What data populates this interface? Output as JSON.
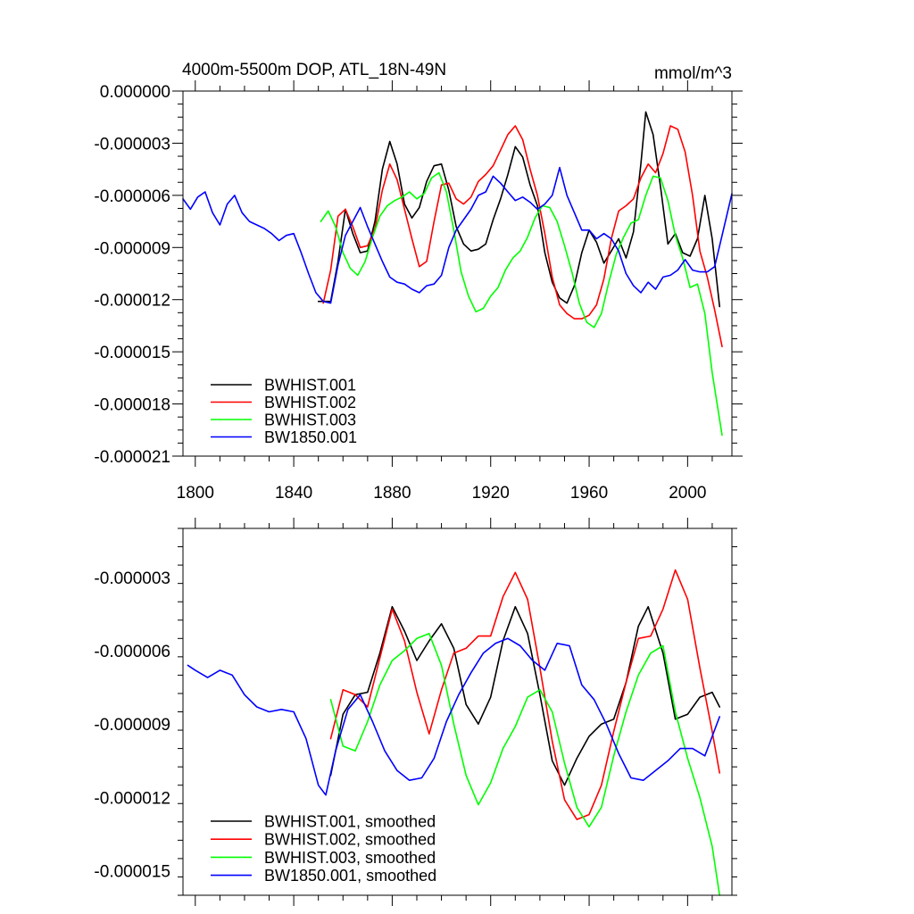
{
  "chart_data": [
    {
      "type": "line",
      "title": "4000m-5500m DOP, ATL_18N-49N",
      "units": "mmol/m^3",
      "xlabel": "",
      "ylabel": "",
      "xlim": [
        1795,
        2018
      ],
      "ylim": [
        -2.1e-05,
        0.0
      ],
      "xticks": [
        1800,
        1840,
        1880,
        1920,
        1960,
        2000
      ],
      "xtick_labels": [
        "1800",
        "1840",
        "1880",
        "1920",
        "1960",
        "2000"
      ],
      "yticks": [
        0.0,
        -3e-06,
        -6e-06,
        -9e-06,
        -1.2e-05,
        -1.5e-05,
        -1.8e-05,
        -2.1e-05
      ],
      "ytick_labels": [
        "0.000000",
        "-0.000003",
        "-0.000006",
        "-0.000009",
        "-0.000012",
        "-0.000015",
        "-0.000018",
        "-0.000021"
      ],
      "legend_position": "bottom-left",
      "series": [
        {
          "name": "BWHIST.001",
          "color": "#000000",
          "x": [
            1850,
            1855,
            1858,
            1861,
            1864,
            1867,
            1870,
            1873,
            1876,
            1879,
            1882,
            1885,
            1888,
            1891,
            1894,
            1897,
            1900,
            1903,
            1906,
            1909,
            1912,
            1915,
            1918,
            1921,
            1924,
            1927,
            1930,
            1933,
            1936,
            1939,
            1942,
            1945,
            1948,
            1951,
            1954,
            1957,
            1960,
            1963,
            1966,
            1969,
            1972,
            1975,
            1978,
            1981,
            1983,
            1986,
            1989,
            1992,
            1995,
            1998,
            2001,
            2004,
            2007,
            2010,
            2013
          ],
          "y": [
            -1.21e-05,
            -1.21e-05,
            -9.8e-06,
            -6.8e-06,
            -8.2e-06,
            -9.3e-06,
            -9.2e-06,
            -7.5e-06,
            -4.5e-06,
            -2.9e-06,
            -4.2e-06,
            -6.5e-06,
            -7.3e-06,
            -6.7e-06,
            -5.2e-06,
            -4.3e-06,
            -4.2e-06,
            -5.7e-06,
            -7.8e-06,
            -8.8e-06,
            -9.2e-06,
            -9.1e-06,
            -8.8e-06,
            -7.4e-06,
            -6.2e-06,
            -4.8e-06,
            -3.2e-06,
            -3.8e-06,
            -5.4e-06,
            -6.6e-06,
            -9.3e-06,
            -1.1e-05,
            -1.19e-05,
            -1.22e-05,
            -1.12e-05,
            -9.3e-06,
            -8e-06,
            -8.7e-06,
            -9.9e-06,
            -9.2e-06,
            -8.5e-06,
            -9.6e-06,
            -8.1e-06,
            -4.2e-06,
            -1.2e-06,
            -2.5e-06,
            -5.5e-06,
            -8.8e-06,
            -8.2e-06,
            -9.3e-06,
            -9.5e-06,
            -8.5e-06,
            -6e-06,
            -8.5e-06,
            -1.24e-05
          ]
        },
        {
          "name": "BWHIST.002",
          "color": "#ff0000",
          "x": [
            1852,
            1855,
            1858,
            1861,
            1864,
            1867,
            1870,
            1873,
            1876,
            1879,
            1882,
            1885,
            1888,
            1891,
            1894,
            1897,
            1900,
            1903,
            1906,
            1909,
            1912,
            1915,
            1918,
            1921,
            1924,
            1927,
            1930,
            1933,
            1936,
            1939,
            1942,
            1945,
            1948,
            1951,
            1954,
            1957,
            1960,
            1963,
            1966,
            1969,
            1972,
            1975,
            1978,
            1981,
            1984,
            1987,
            1990,
            1993,
            1996,
            1999,
            2002,
            2005,
            2008,
            2011,
            2014
          ],
          "y": [
            -1.22e-05,
            -1.03e-05,
            -7.2e-06,
            -6.8e-06,
            -7.8e-06,
            -9e-06,
            -8.9e-06,
            -7.9e-06,
            -5.7e-06,
            -4.2e-06,
            -5.1e-06,
            -6.8e-06,
            -8.5e-06,
            -1.01e-05,
            -9.8e-06,
            -7.5e-06,
            -5.4e-06,
            -5.3e-06,
            -6.2e-06,
            -6.5e-06,
            -6.1e-06,
            -5.2e-06,
            -4.8e-06,
            -4.3e-06,
            -3.4e-06,
            -2.5e-06,
            -2e-06,
            -2.8e-06,
            -4.5e-06,
            -6e-06,
            -8.2e-06,
            -1.07e-05,
            -1.23e-05,
            -1.28e-05,
            -1.31e-05,
            -1.31e-05,
            -1.29e-05,
            -1.23e-05,
            -1.08e-05,
            -8.5e-06,
            -6.9e-06,
            -6.6e-06,
            -6.2e-06,
            -5e-06,
            -4.2e-06,
            -4.7e-06,
            -3.6e-06,
            -2e-06,
            -2.2e-06,
            -3.5e-06,
            -6e-06,
            -9.2e-06,
            -1.07e-05,
            -1.26e-05,
            -1.47e-05
          ]
        },
        {
          "name": "BWHIST.003",
          "color": "#00ff00",
          "x": [
            1851,
            1854,
            1857,
            1860,
            1863,
            1866,
            1869,
            1872,
            1875,
            1878,
            1881,
            1884,
            1887,
            1890,
            1893,
            1896,
            1899,
            1902,
            1905,
            1908,
            1911,
            1914,
            1917,
            1920,
            1923,
            1926,
            1929,
            1932,
            1935,
            1938,
            1941,
            1944,
            1947,
            1950,
            1953,
            1956,
            1959,
            1962,
            1965,
            1968,
            1971,
            1974,
            1977,
            1980,
            1983,
            1986,
            1989,
            1992,
            1995,
            1998,
            2001,
            2004,
            2007,
            2010,
            2014
          ],
          "y": [
            -7.5e-06,
            -6.9e-06,
            -7.8e-06,
            -9.3e-06,
            -1.02e-05,
            -1.06e-05,
            -9.8e-06,
            -8.4e-06,
            -7.2e-06,
            -6.6e-06,
            -6.3e-06,
            -6.1e-06,
            -5.8e-06,
            -6.2e-06,
            -5.9e-06,
            -5e-06,
            -4.7e-06,
            -5.8e-06,
            -8e-06,
            -1.04e-05,
            -1.18e-05,
            -1.27e-05,
            -1.25e-05,
            -1.18e-05,
            -1.13e-05,
            -1.03e-05,
            -9.6e-06,
            -9.2e-06,
            -8.4e-06,
            -7.3e-06,
            -6.6e-06,
            -6.7e-06,
            -7.5e-06,
            -8.9e-06,
            -1.04e-05,
            -1.22e-05,
            -1.33e-05,
            -1.36e-05,
            -1.28e-05,
            -1.1e-05,
            -9.4e-06,
            -8.4e-06,
            -7.6e-06,
            -7.4e-06,
            -6e-06,
            -4.9e-06,
            -5e-06,
            -6.3e-06,
            -8.3e-06,
            -9.6e-06,
            -1.13e-05,
            -1.11e-05,
            -1.28e-05,
            -1.62e-05,
            -1.98e-05
          ]
        },
        {
          "name": "BW1850.001",
          "color": "#0000ff",
          "x": [
            1795,
            1798,
            1801,
            1804,
            1807,
            1810,
            1813,
            1816,
            1819,
            1822,
            1825,
            1828,
            1831,
            1834,
            1837,
            1840,
            1843,
            1846,
            1849,
            1852,
            1855,
            1858,
            1861,
            1864,
            1867,
            1870,
            1873,
            1876,
            1879,
            1882,
            1885,
            1888,
            1891,
            1894,
            1897,
            1900,
            1903,
            1906,
            1909,
            1912,
            1915,
            1918,
            1921,
            1924,
            1927,
            1930,
            1933,
            1936,
            1939,
            1942,
            1945,
            1948,
            1951,
            1954,
            1957,
            1960,
            1963,
            1966,
            1969,
            1972,
            1975,
            1978,
            1981,
            1984,
            1987,
            1990,
            1993,
            1996,
            1999,
            2002,
            2005,
            2008,
            2011,
            2014,
            2018
          ],
          "y": [
            -6.2e-06,
            -6.8e-06,
            -6.1e-06,
            -5.8e-06,
            -7e-06,
            -7.7e-06,
            -6.5e-06,
            -6e-06,
            -7e-06,
            -7.5e-06,
            -7.7e-06,
            -7.9e-06,
            -8.2e-06,
            -8.6e-06,
            -8.3e-06,
            -8.2e-06,
            -9.3e-06,
            -1.05e-05,
            -1.16e-05,
            -1.21e-05,
            -1.22e-05,
            -1e-05,
            -8.3e-06,
            -7.5e-06,
            -6.7e-06,
            -7.8e-06,
            -8.8e-06,
            -9.8e-06,
            -1.07e-05,
            -1.1e-05,
            -1.11e-05,
            -1.14e-05,
            -1.16e-05,
            -1.12e-05,
            -1.11e-05,
            -1.06e-05,
            -9e-06,
            -8e-06,
            -7.4e-06,
            -6.8e-06,
            -6e-06,
            -5.8e-06,
            -4.9e-06,
            -5.3e-06,
            -5.8e-06,
            -6.3e-06,
            -6.1e-06,
            -6.4e-06,
            -6.8e-06,
            -6.5e-06,
            -6e-06,
            -4.4e-06,
            -6e-06,
            -7e-06,
            -8e-06,
            -8e-06,
            -8.5e-06,
            -8.2e-06,
            -8.5e-06,
            -9.2e-06,
            -1.05e-05,
            -1.12e-05,
            -1.16e-05,
            -1.1e-05,
            -1.14e-05,
            -1.07e-05,
            -1.06e-05,
            -1.03e-05,
            -9.7e-06,
            -1.03e-05,
            -1.04e-05,
            -1.04e-05,
            -1.01e-05,
            -8.3e-06,
            -5.9e-06
          ]
        }
      ]
    },
    {
      "type": "line",
      "title": "",
      "xlabel": "",
      "ylabel": "",
      "xlim": [
        1795,
        2018
      ],
      "ylim": [
        -1.6e-05,
        -1e-06
      ],
      "xticks": [
        1800,
        1840,
        1880,
        1920,
        1960,
        2000
      ],
      "xtick_labels": [],
      "yticks": [
        -3e-06,
        -6e-06,
        -9e-06,
        -1.2e-05,
        -1.5e-05
      ],
      "ytick_labels": [
        "-0.000003",
        "-0.000006",
        "-0.000009",
        "-0.000012",
        "-0.000015"
      ],
      "legend_position": "bottom-left",
      "series": [
        {
          "name": "BWHIST.001, smoothed",
          "color": "#000000",
          "x": [
            1855,
            1860,
            1865,
            1870,
            1875,
            1880,
            1885,
            1890,
            1895,
            1900,
            1905,
            1910,
            1915,
            1920,
            1925,
            1930,
            1935,
            1940,
            1945,
            1950,
            1955,
            1960,
            1965,
            1970,
            1975,
            1980,
            1984,
            1990,
            1995,
            2000,
            2005,
            2010,
            2013
          ],
          "y": [
            -1.11e-05,
            -8.6e-06,
            -7.8e-06,
            -7.7e-06,
            -6.1e-06,
            -4.2e-06,
            -5.2e-06,
            -6.4e-06,
            -5.6e-06,
            -4.9e-06,
            -5.9e-06,
            -8.2e-06,
            -9e-06,
            -7.9e-06,
            -5.6e-06,
            -4.2e-06,
            -5.3e-06,
            -7.8e-06,
            -1.05e-05,
            -1.15e-05,
            -1.04e-05,
            -9.5e-06,
            -9e-06,
            -8.8e-06,
            -7.3e-06,
            -5e-06,
            -4.2e-06,
            -6.1e-06,
            -8.8e-06,
            -8.6e-06,
            -7.9e-06,
            -7.7e-06,
            -8.3e-06
          ]
        },
        {
          "name": "BWHIST.002, smoothed",
          "color": "#ff0000",
          "x": [
            1855,
            1860,
            1865,
            1870,
            1875,
            1880,
            1885,
            1890,
            1895,
            1900,
            1905,
            1910,
            1915,
            1920,
            1925,
            1930,
            1935,
            1940,
            1945,
            1950,
            1955,
            1960,
            1965,
            1970,
            1975,
            1980,
            1985,
            1990,
            1995,
            2000,
            2005,
            2010,
            2013
          ],
          "y": [
            -9.6e-06,
            -7.6e-06,
            -7.8e-06,
            -8.3e-06,
            -6.3e-06,
            -4.3e-06,
            -5.6e-06,
            -7.7e-06,
            -9.4e-06,
            -7.6e-06,
            -6.1e-06,
            -5.9e-06,
            -5.4e-06,
            -5.4e-06,
            -3.8e-06,
            -2.8e-06,
            -3.9e-06,
            -6.7e-06,
            -9.7e-06,
            -1.21e-05,
            -1.29e-05,
            -1.27e-05,
            -1.15e-05,
            -9.3e-06,
            -7.3e-06,
            -5.5e-06,
            -5.4e-06,
            -4.3e-06,
            -2.7e-06,
            -3.9e-06,
            -6.7e-06,
            -9.3e-06,
            -1.1e-05
          ]
        },
        {
          "name": "BWHIST.003, smoothed",
          "color": "#00ff00",
          "x": [
            1855,
            1860,
            1865,
            1870,
            1875,
            1880,
            1885,
            1890,
            1895,
            1900,
            1905,
            1910,
            1915,
            1920,
            1925,
            1930,
            1935,
            1940,
            1945,
            1950,
            1955,
            1960,
            1965,
            1970,
            1975,
            1980,
            1985,
            1990,
            1995,
            2000,
            2005,
            2010,
            2013
          ],
          "y": [
            -8e-06,
            -9.9e-06,
            -1.01e-05,
            -8.9e-06,
            -7.4e-06,
            -6.4e-06,
            -6e-06,
            -5.5e-06,
            -5.3e-06,
            -6.6e-06,
            -9e-06,
            -1.11e-05,
            -1.23e-05,
            -1.14e-05,
            -1e-05,
            -9.1e-06,
            -7.9e-06,
            -7.6e-06,
            -8.5e-06,
            -1.06e-05,
            -1.24e-05,
            -1.32e-05,
            -1.24e-05,
            -1.03e-05,
            -8.5e-06,
            -7e-06,
            -6.1e-06,
            -5.8e-06,
            -8.5e-06,
            -1.04e-05,
            -1.2e-05,
            -1.4e-05,
            -1.6e-05
          ]
        },
        {
          "name": "BW1850.001, smoothed",
          "color": "#0000ff",
          "x": [
            1797,
            1800,
            1805,
            1810,
            1815,
            1820,
            1825,
            1830,
            1835,
            1840,
            1845,
            1850,
            1853,
            1857,
            1862,
            1867,
            1872,
            1877,
            1882,
            1887,
            1892,
            1897,
            1902,
            1907,
            1912,
            1917,
            1922,
            1927,
            1932,
            1937,
            1942,
            1947,
            1952,
            1957,
            1962,
            1967,
            1972,
            1977,
            1982,
            1987,
            1992,
            1997,
            2002,
            2007,
            2013
          ],
          "y": [
            -6.6e-06,
            -6.8e-06,
            -7.1e-06,
            -6.8e-06,
            -7e-06,
            -7.8e-06,
            -8.3e-06,
            -8.5e-06,
            -8.4e-06,
            -8.5e-06,
            -9.6e-06,
            -1.15e-05,
            -1.19e-05,
            -1.01e-05,
            -8.4e-06,
            -7.8e-06,
            -8.9e-06,
            -1.01e-05,
            -1.09e-05,
            -1.13e-05,
            -1.12e-05,
            -1.04e-05,
            -8.9e-06,
            -7.8e-06,
            -6.9e-06,
            -6.1e-06,
            -5.7e-06,
            -5.5e-06,
            -5.8e-06,
            -6.4e-06,
            -6.8e-06,
            -5.7e-06,
            -5.8e-06,
            -7.4e-06,
            -8e-06,
            -9e-06,
            -1.02e-05,
            -1.12e-05,
            -1.13e-05,
            -1.09e-05,
            -1.05e-05,
            -1e-05,
            -1e-05,
            -1.03e-05,
            -8.7e-06
          ]
        }
      ]
    }
  ]
}
